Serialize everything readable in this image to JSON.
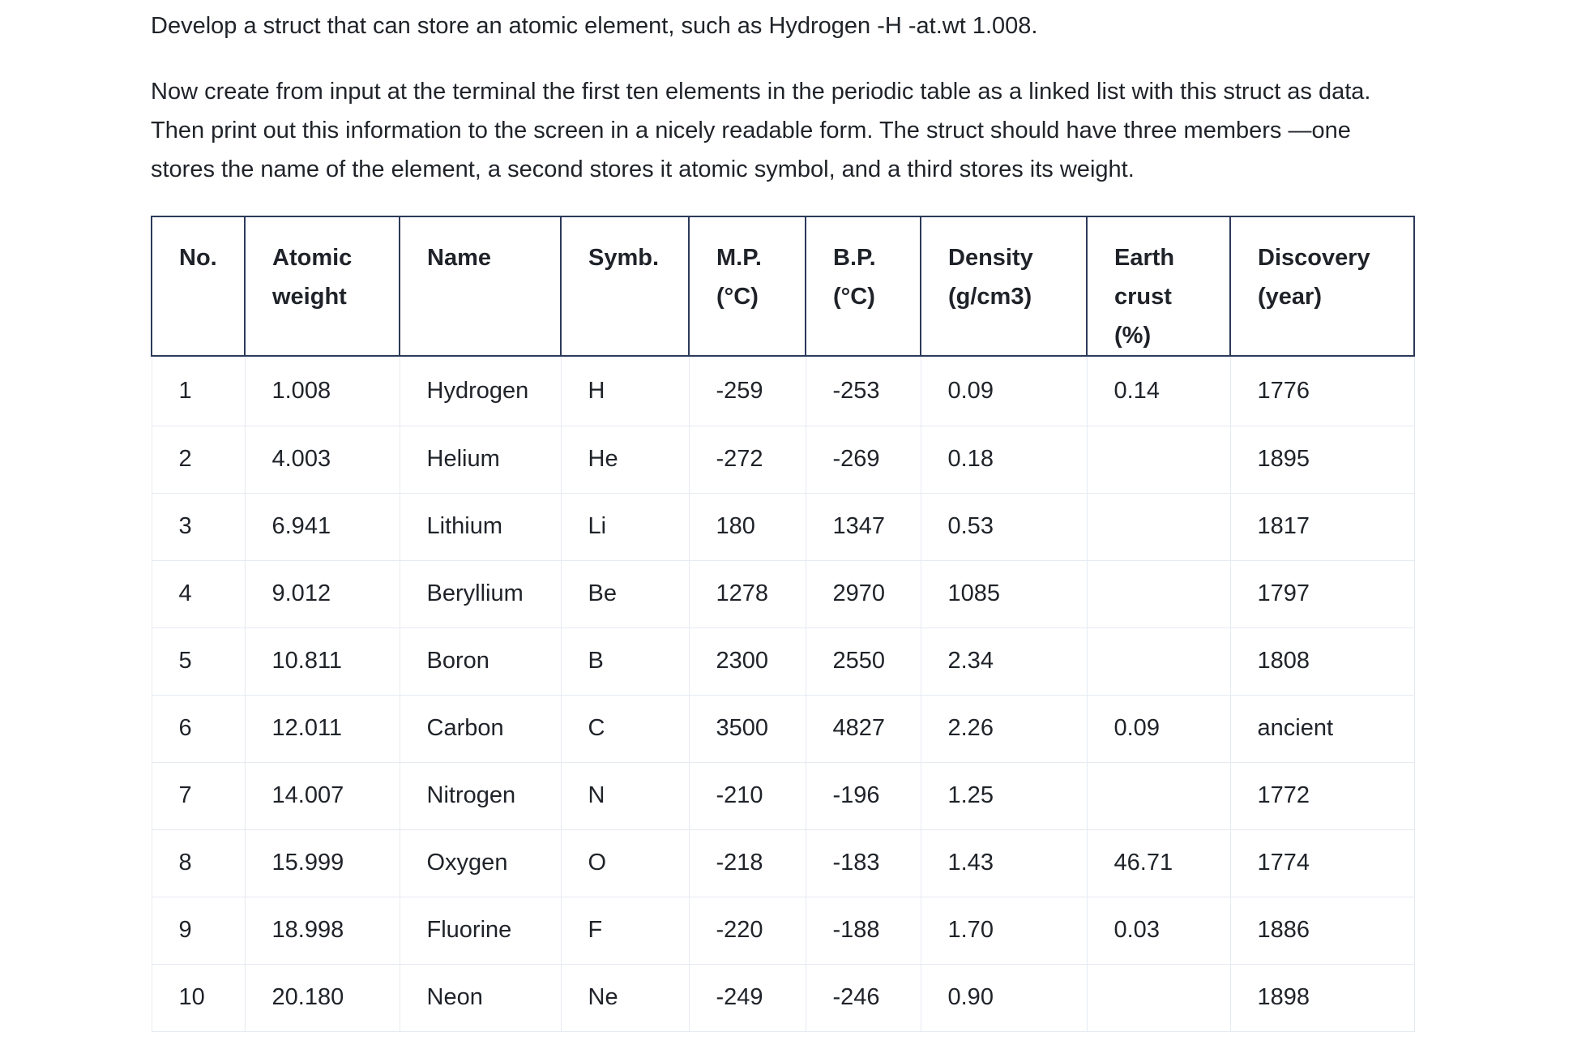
{
  "intro": {
    "paragraph1": "Develop a struct that can store an atomic element, such as Hydrogen -H -at.wt 1.008.",
    "paragraph2": "Now create from input at the terminal the first ten elements in the periodic table as a linked list with this struct as data. Then print out this information to the screen in a nicely readable form. The struct should have three members —one stores the name of the element, a second stores it atomic symbol, and a third stores its weight."
  },
  "table": {
    "headers": {
      "no_line1": "No.",
      "atomic_line1": "Atomic",
      "atomic_line2": "weight",
      "name_line1": "Name",
      "symb_line1": "Symb.",
      "mp_line1": "M.P.",
      "mp_line2": "(°C)",
      "bp_line1": "B.P.",
      "bp_line2": "(°C)",
      "density_line1": "Density",
      "density_line2": "(g/cm3)",
      "crust_line1": "Earth",
      "crust_line2": "crust",
      "crust_line3": "(%)",
      "discovery_line1": "Discovery",
      "discovery_line2": "(year)"
    },
    "rows": [
      {
        "no": "1",
        "weight": "1.008",
        "name": "Hydrogen",
        "symb": "H",
        "mp": "-259",
        "bp": "-253",
        "density": "0.09",
        "crust": "0.14",
        "discovery": "1776"
      },
      {
        "no": "2",
        "weight": "4.003",
        "name": "Helium",
        "symb": "He",
        "mp": "-272",
        "bp": "-269",
        "density": "0.18",
        "crust": "",
        "discovery": "1895"
      },
      {
        "no": "3",
        "weight": "6.941",
        "name": "Lithium",
        "symb": "Li",
        "mp": "180",
        "bp": "1347",
        "density": "0.53",
        "crust": "",
        "discovery": "1817"
      },
      {
        "no": "4",
        "weight": "9.012",
        "name": "Beryllium",
        "symb": "Be",
        "mp": "1278",
        "bp": "2970",
        "density": "1085",
        "crust": "",
        "discovery": "1797"
      },
      {
        "no": "5",
        "weight": "10.811",
        "name": "Boron",
        "symb": "B",
        "mp": "2300",
        "bp": "2550",
        "density": "2.34",
        "crust": "",
        "discovery": "1808"
      },
      {
        "no": "6",
        "weight": "12.011",
        "name": "Carbon",
        "symb": "C",
        "mp": "3500",
        "bp": "4827",
        "density": "2.26",
        "crust": "0.09",
        "discovery": "ancient"
      },
      {
        "no": "7",
        "weight": "14.007",
        "name": "Nitrogen",
        "symb": "N",
        "mp": "-210",
        "bp": "-196",
        "density": "1.25",
        "crust": "",
        "discovery": "1772"
      },
      {
        "no": "8",
        "weight": "15.999",
        "name": "Oxygen",
        "symb": "O",
        "mp": "-218",
        "bp": "-183",
        "density": "1.43",
        "crust": "46.71",
        "discovery": "1774"
      },
      {
        "no": "9",
        "weight": "18.998",
        "name": "Fluorine",
        "symb": "F",
        "mp": "-220",
        "bp": "-188",
        "density": "1.70",
        "crust": "0.03",
        "discovery": "1886"
      },
      {
        "no": "10",
        "weight": "20.180",
        "name": "Neon",
        "symb": "Ne",
        "mp": "-249",
        "bp": "-246",
        "density": "0.90",
        "crust": "",
        "discovery": "1898"
      }
    ]
  }
}
